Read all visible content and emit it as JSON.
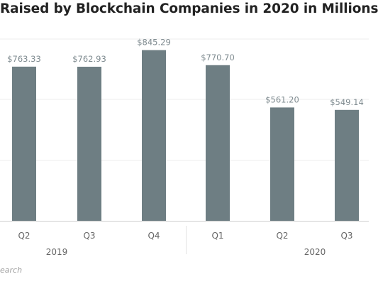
{
  "chart_data": {
    "type": "bar",
    "title": "Raised by Blockchain Companies in 2020 in Millions",
    "categories": [
      "Q2",
      "Q3",
      "Q4",
      "Q1",
      "Q2",
      "Q3"
    ],
    "groups": [
      {
        "label": "2019",
        "categories": [
          "Q2",
          "Q3",
          "Q4"
        ]
      },
      {
        "label": "2020",
        "categories": [
          "Q1",
          "Q2",
          "Q3"
        ]
      }
    ],
    "values": [
      763.33,
      762.93,
      845.29,
      770.7,
      561.2,
      549.14
    ],
    "value_labels": [
      "$763.33",
      "$762.93",
      "$845.29",
      "$770.70",
      "$561.20",
      "$549.14"
    ],
    "ylim": [
      0,
      900
    ],
    "grid": true,
    "xlabel": "",
    "ylabel": "",
    "bar_color": "#6e7e83"
  },
  "source_text": "earch"
}
